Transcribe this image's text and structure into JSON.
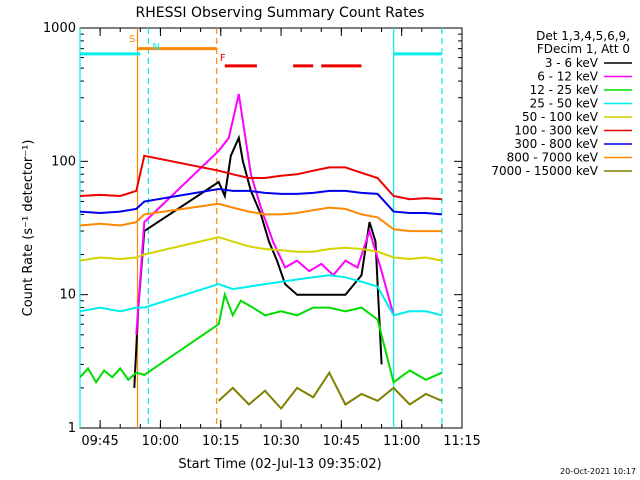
{
  "chart_data": {
    "type": "line",
    "title": "RHESSI Observing Summary Count Rates",
    "xlabel": "Start Time (02-Jul-13 09:35:02)",
    "ylabel": "Count Rate (s⁻¹ detector⁻¹)",
    "log_y": true,
    "ylim": [
      1,
      1000
    ],
    "xlim_minutes": [
      580,
      675
    ],
    "x_ticks": [
      {
        "label": "09:45",
        "minute": 585
      },
      {
        "label": "10:00",
        "minute": 600
      },
      {
        "label": "10:15",
        "minute": 615
      },
      {
        "label": "10:30",
        "minute": 630
      },
      {
        "label": "10:45",
        "minute": 645
      },
      {
        "label": "11:00",
        "minute": 660
      },
      {
        "label": "11:15",
        "minute": 675
      }
    ],
    "y_ticks": [
      {
        "label": "1",
        "value": 1
      },
      {
        "label": "10",
        "value": 10
      },
      {
        "label": "100",
        "value": 100
      },
      {
        "label": "1000",
        "value": 1000
      }
    ],
    "legend_header": [
      "Det 1,3,4,5,6,9,",
      "FDecim 1, Att 0"
    ],
    "legend_position": "right",
    "series": [
      {
        "name": "3 - 6 keV",
        "color": "#000000",
        "x": [
          593.5,
          594.5,
          596.0,
          614.5,
          616.0,
          617.5,
          619.5,
          620.5,
          622.5,
          625.0,
          627.0,
          629.0,
          631.0,
          634.0,
          638.0,
          642.0,
          646.0,
          650.0,
          652.0,
          653.5,
          655.0
        ],
        "y": [
          2,
          8,
          30,
          70,
          55,
          110,
          150,
          100,
          60,
          40,
          25,
          18,
          12,
          10,
          10,
          10,
          10,
          14,
          35,
          25,
          3
        ]
      },
      {
        "name": "6 - 12 keV",
        "color": "#ff00ff",
        "x": [
          594.0,
          596.0,
          614.5,
          617.0,
          619.5,
          620.5,
          622.5,
          625.0,
          628.0,
          631.0,
          634.0,
          637.0,
          640.0,
          643.0,
          646.0,
          649.0,
          652.0,
          655.0,
          658.0
        ],
        "y": [
          5,
          35,
          120,
          150,
          320,
          200,
          80,
          45,
          25,
          16,
          18,
          15,
          17,
          14,
          18,
          16,
          30,
          15,
          7
        ]
      },
      {
        "name": "12 - 25 keV",
        "color": "#00dd00",
        "x": [
          580,
          582,
          584,
          586,
          588,
          590,
          592,
          594,
          596,
          614.5,
          616,
          618,
          620,
          623,
          626,
          630,
          634,
          638,
          642,
          646,
          650,
          654,
          658,
          662,
          666,
          670
        ],
        "y": [
          2.4,
          2.8,
          2.2,
          2.7,
          2.4,
          2.8,
          2.3,
          2.6,
          2.5,
          6,
          10,
          7,
          9,
          8,
          7,
          7.5,
          7,
          8,
          8,
          7.5,
          8,
          6.5,
          2.2,
          2.7,
          2.3,
          2.6
        ]
      },
      {
        "name": "25 - 50 keV",
        "color": "#00eeee",
        "x": [
          580,
          585,
          590,
          594,
          596,
          614.5,
          618,
          622,
          626,
          630,
          634,
          638,
          642,
          646,
          650,
          654,
          658,
          662,
          666,
          670
        ],
        "y": [
          7.5,
          8,
          7.5,
          8,
          8,
          12,
          11,
          11.5,
          12,
          12.5,
          13,
          13.5,
          14,
          13.5,
          12.5,
          11.5,
          7,
          7.5,
          7.5,
          7
        ]
      },
      {
        "name": "50 - 100 keV",
        "color": "#d4d400",
        "x": [
          580,
          585,
          590,
          594,
          596,
          614.5,
          618,
          622,
          626,
          630,
          634,
          638,
          642,
          646,
          650,
          654,
          658,
          662,
          666,
          670
        ],
        "y": [
          18,
          19,
          18.5,
          19,
          20,
          27,
          25,
          23,
          22,
          21.5,
          21,
          21,
          22,
          22.5,
          22,
          21,
          19,
          18.5,
          19,
          18
        ]
      },
      {
        "name": "100 - 300 keV",
        "color": "#ee0000",
        "x": [
          580,
          585,
          590,
          594,
          596,
          614.5,
          618,
          622,
          626,
          630,
          634,
          638,
          642,
          646,
          650,
          654,
          658,
          662,
          666,
          670
        ],
        "y": [
          55,
          56,
          55,
          60,
          110,
          85,
          80,
          75,
          75,
          78,
          80,
          85,
          90,
          90,
          82,
          75,
          55,
          52,
          53,
          52
        ]
      },
      {
        "name": "300 - 800 keV",
        "color": "#0000ee",
        "x": [
          580,
          585,
          590,
          594,
          596,
          614.5,
          618,
          622,
          626,
          630,
          634,
          638,
          642,
          646,
          650,
          654,
          658,
          662,
          666,
          670
        ],
        "y": [
          42,
          41,
          42,
          44,
          50,
          62,
          60,
          60,
          58,
          57,
          57,
          58,
          60,
          60,
          58,
          57,
          42,
          41,
          41,
          40
        ]
      },
      {
        "name": "800 - 7000 keV",
        "color": "#ff8800",
        "x": [
          580,
          585,
          590,
          594,
          596,
          614.5,
          618,
          622,
          626,
          630,
          634,
          638,
          642,
          646,
          650,
          654,
          658,
          662,
          666,
          670
        ],
        "y": [
          33,
          34,
          33,
          35,
          40,
          48,
          45,
          42,
          40,
          40,
          41,
          43,
          45,
          44,
          40,
          38,
          31,
          30,
          30,
          30
        ]
      },
      {
        "name": "7000 - 15000 keV",
        "color": "#808000",
        "x": [
          614.5,
          618,
          622,
          626,
          630,
          634,
          638,
          642,
          646,
          650,
          654,
          658,
          662,
          666,
          670
        ],
        "y": [
          1.6,
          2.0,
          1.5,
          1.9,
          1.4,
          2.0,
          1.7,
          2.6,
          1.5,
          1.8,
          1.6,
          2.0,
          1.5,
          1.8,
          1.6
        ]
      }
    ],
    "annotations": [
      {
        "label": "S",
        "color": "#ff8800"
      },
      {
        "label": "N",
        "color": "#00eeee"
      },
      {
        "label": "F",
        "color": "#ee0000"
      }
    ],
    "intervals": [
      {
        "type": "saa_bar",
        "color": "#ff8800",
        "start": 594.3,
        "end": 614.0,
        "y": 700
      },
      {
        "type": "night_bar",
        "color": "#00eeee",
        "start": 580.0,
        "end": 595.0,
        "y": 640
      },
      {
        "type": "night_bar",
        "color": "#00eeee",
        "start": 658.0,
        "end": 670.0,
        "y": 640
      },
      {
        "type": "flare_bar",
        "color": "#ee0000",
        "segments": [
          [
            616.0,
            624.0
          ],
          [
            633.0,
            638.0
          ],
          [
            640.0,
            650.0
          ]
        ],
        "y": 520
      }
    ],
    "vlines": [
      {
        "x": 594.3,
        "color": "#ff8800",
        "style": "solid"
      },
      {
        "x": 597.0,
        "color": "#00eeee",
        "style": "dashed"
      },
      {
        "x": 580.0,
        "color": "#00eeee",
        "style": "solid"
      },
      {
        "x": 614.0,
        "color": "#ff8800",
        "style": "dashed"
      },
      {
        "x": 658.0,
        "color": "#00eeee",
        "style": "solid"
      },
      {
        "x": 670.0,
        "color": "#00eeee",
        "style": "dashed"
      }
    ]
  },
  "footer": {
    "date_stamp": "20-Oct-2021 10:17"
  }
}
